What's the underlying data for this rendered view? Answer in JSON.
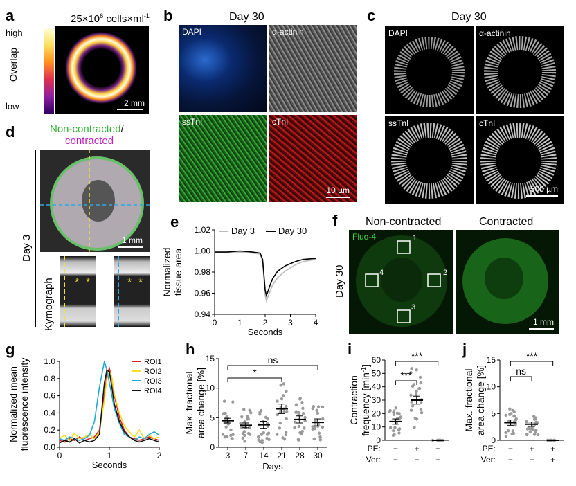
{
  "panels": {
    "a": {
      "label": "a",
      "density": "25×10",
      "density_exp": "6",
      "density_unit": " cells×ml",
      "density_unit_exp": "-1",
      "bar_high": "high",
      "bar_low": "low",
      "bar_axis": "Overlap",
      "scale": "2 mm"
    },
    "b": {
      "label": "b",
      "title": "Day 30",
      "tiles": [
        "DAPI",
        "α-actinin",
        "ssTnI",
        "cTnI"
      ],
      "scale": "10 µm"
    },
    "c": {
      "label": "c",
      "title": "Day 30",
      "tiles": [
        "DAPI",
        "α-actinin",
        "ssTnI",
        "cTnI"
      ],
      "scale": "500 µm"
    },
    "d": {
      "label": "d",
      "title_green": "Non-contracted",
      "title_sep": "/",
      "title_magenta": "contracted",
      "side_label": "Day 3",
      "kymo_label": "Kymograph",
      "scale": "1 mm",
      "asterisk": "*"
    },
    "e": {
      "label": "e"
    },
    "f": {
      "label": "f",
      "title_left": "Non-contracted",
      "title_right": "Contracted",
      "dye": "Fluo-4",
      "side_label": "Day 30",
      "rois": [
        "1",
        "2",
        "3",
        "4"
      ],
      "scale": "1 mm"
    },
    "g": {
      "label": "g"
    },
    "h": {
      "label": "h",
      "ns": "ns",
      "star": "*"
    },
    "i": {
      "label": "i",
      "stars": "***",
      "row1": "PE:",
      "row2": "Ver:"
    },
    "j": {
      "label": "j",
      "ns": "ns",
      "stars": "***",
      "row1": "PE:",
      "row2": "Ver:"
    }
  },
  "chart_data": [
    {
      "id": "e",
      "type": "line",
      "ylabel_1": "Normalized",
      "ylabel_2": "tissue area",
      "xlabel": "Seconds",
      "xlim": [
        0,
        4
      ],
      "ylim": [
        0.94,
        1.02
      ],
      "xticks": [
        "0",
        "1",
        "2",
        "3",
        "4"
      ],
      "yticks": [
        "0.94",
        "0.96",
        "0.98",
        "1.00",
        "1.02"
      ],
      "legend_position": "top",
      "series": [
        {
          "name": "Day 3",
          "color": "#bbbbbb",
          "x": [
            0,
            0.5,
            1,
            1.5,
            1.8,
            1.9,
            1.95,
            2.0,
            2.05,
            2.1,
            2.2,
            2.3,
            2.5,
            2.8,
            3,
            3.2,
            3.5,
            4
          ],
          "y": [
            0.999,
            0.999,
            0.999,
            0.998,
            0.997,
            0.99,
            0.975,
            0.958,
            0.953,
            0.956,
            0.962,
            0.968,
            0.975,
            0.981,
            0.984,
            0.987,
            0.99,
            0.992
          ]
        },
        {
          "name": "Day 30",
          "color": "#000000",
          "x": [
            0,
            0.5,
            1,
            1.5,
            1.8,
            1.9,
            1.95,
            2.0,
            2.05,
            2.1,
            2.2,
            2.3,
            2.5,
            2.8,
            3,
            3.2,
            3.5,
            4
          ],
          "y": [
            0.999,
            0.999,
            1.0,
            0.999,
            0.998,
            0.992,
            0.978,
            0.963,
            0.958,
            0.961,
            0.968,
            0.974,
            0.981,
            0.986,
            0.988,
            0.99,
            0.992,
            0.993
          ]
        }
      ]
    },
    {
      "id": "g",
      "type": "line",
      "ylabel_1": "Normalized mean",
      "ylabel_2": "fluorescence intensity",
      "xlabel": "Seconds",
      "xlim": [
        0,
        2
      ],
      "ylim": [
        0,
        1.0
      ],
      "xticks": [
        "0",
        "1",
        "2"
      ],
      "yticks": [
        "0.0",
        "0.2",
        "0.4",
        "0.6",
        "0.8",
        "1.0"
      ],
      "legend_position": "top-right",
      "series": [
        {
          "name": "ROI1",
          "color": "#e02020",
          "x": [
            0,
            0.1,
            0.2,
            0.3,
            0.4,
            0.5,
            0.6,
            0.7,
            0.8,
            0.9,
            0.95,
            1.0,
            1.05,
            1.1,
            1.2,
            1.3,
            1.4,
            1.5,
            1.6,
            1.7,
            1.8,
            1.9,
            2.0
          ],
          "y": [
            0.08,
            0.06,
            0.1,
            0.08,
            0.12,
            0.08,
            0.1,
            0.12,
            0.2,
            0.6,
            0.85,
            0.92,
            0.8,
            0.6,
            0.35,
            0.2,
            0.12,
            0.1,
            0.08,
            0.1,
            0.12,
            0.1,
            0.08
          ]
        },
        {
          "name": "ROI2",
          "color": "#f0e020",
          "x": [
            0,
            0.1,
            0.2,
            0.3,
            0.4,
            0.5,
            0.6,
            0.7,
            0.8,
            0.9,
            0.95,
            1.0,
            1.05,
            1.1,
            1.2,
            1.3,
            1.4,
            1.5,
            1.6,
            1.7,
            1.8,
            1.9,
            2.0
          ],
          "y": [
            0.1,
            0.14,
            0.08,
            0.16,
            0.1,
            0.12,
            0.15,
            0.1,
            0.18,
            0.55,
            0.8,
            0.88,
            0.82,
            0.62,
            0.4,
            0.25,
            0.18,
            0.12,
            0.2,
            0.1,
            0.14,
            0.1,
            0.12
          ]
        },
        {
          "name": "ROI3",
          "color": "#20a8d0",
          "x": [
            0,
            0.1,
            0.2,
            0.3,
            0.4,
            0.5,
            0.6,
            0.7,
            0.8,
            0.9,
            0.95,
            1.0,
            1.05,
            1.1,
            1.2,
            1.3,
            1.4,
            1.5,
            1.6,
            1.7,
            1.8,
            1.9,
            2.0
          ],
          "y": [
            0.1,
            0.08,
            0.12,
            0.1,
            0.08,
            0.1,
            0.14,
            0.3,
            0.7,
            1.0,
            0.9,
            0.75,
            0.6,
            0.45,
            0.28,
            0.15,
            0.12,
            0.08,
            0.12,
            0.1,
            0.15,
            0.18,
            0.14
          ]
        },
        {
          "name": "ROI4",
          "color": "#111111",
          "x": [
            0,
            0.1,
            0.2,
            0.3,
            0.4,
            0.5,
            0.6,
            0.7,
            0.8,
            0.9,
            0.95,
            1.0,
            1.05,
            1.1,
            1.2,
            1.3,
            1.4,
            1.5,
            1.6,
            1.7,
            1.8,
            1.9,
            2.0
          ],
          "y": [
            0.05,
            0.08,
            0.06,
            0.1,
            0.05,
            0.08,
            0.06,
            0.08,
            0.15,
            0.75,
            0.9,
            0.88,
            0.7,
            0.5,
            0.3,
            0.18,
            0.12,
            0.08,
            0.06,
            0.08,
            0.1,
            0.08,
            0.06
          ]
        }
      ]
    },
    {
      "id": "h",
      "type": "scatter",
      "ylabel_1": "Max. fractional",
      "ylabel_2": "area change [%]",
      "xlabel": "Days",
      "ylim": [
        0,
        15
      ],
      "yticks": [
        "0",
        "5",
        "10",
        "15"
      ],
      "categories": [
        "3",
        "7",
        "14",
        "21",
        "28",
        "30"
      ],
      "means": [
        4.5,
        3.7,
        3.8,
        6.5,
        4.7,
        4.2
      ],
      "sems": [
        0.4,
        0.4,
        0.6,
        0.8,
        0.6,
        0.6
      ]
    },
    {
      "id": "i",
      "type": "scatter",
      "ylabel_1": "Contraction",
      "ylabel_2": "frequency [min",
      "ylabel_exp": "-1",
      "ylabel_end": "]",
      "ylim": [
        0,
        60
      ],
      "yticks": [
        "0",
        "10",
        "20",
        "30",
        "40",
        "50",
        "60"
      ],
      "categories": [
        "PE:−/Ver:−",
        "PE:+/Ver:−",
        "PE:+/Ver:+"
      ],
      "row1": [
        "−",
        "+",
        "+"
      ],
      "row2": [
        "−",
        "−",
        "+"
      ],
      "means": [
        14,
        30,
        0
      ],
      "sems": [
        2,
        3,
        0
      ]
    },
    {
      "id": "j",
      "type": "scatter",
      "ylabel_1": "Max. fractional",
      "ylabel_2": "area change [%]",
      "ylim": [
        0,
        15
      ],
      "yticks": [
        "0",
        "5",
        "10",
        "15"
      ],
      "categories": [
        "PE:−/Ver:−",
        "PE:+/Ver:−",
        "PE:+/Ver:+"
      ],
      "row1": [
        "−",
        "+",
        "+"
      ],
      "row2": [
        "−",
        "−",
        "+"
      ],
      "means": [
        3.3,
        3.0,
        0
      ],
      "sems": [
        0.5,
        0.4,
        0
      ]
    }
  ]
}
